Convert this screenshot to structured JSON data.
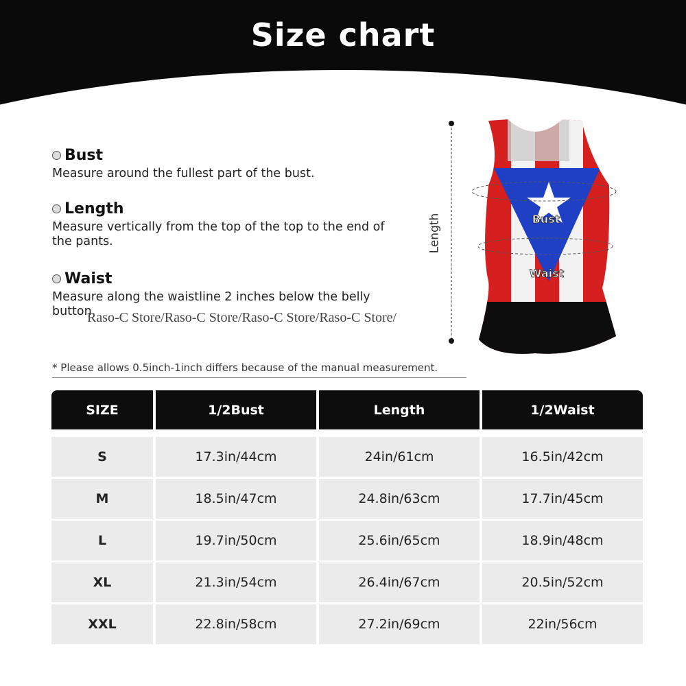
{
  "header": {
    "title": "Size chart"
  },
  "sections": [
    {
      "title": "Bust",
      "desc": "Measure around the fullest part of the bust."
    },
    {
      "title": "Length",
      "desc": "Measure vertically from the top of the top to the end of the pants."
    },
    {
      "title": "Waist",
      "desc": "Measure along the waistline 2 inches below the belly button."
    }
  ],
  "watermark": "Raso-C Store/Raso-C Store/Raso-C Store/Raso-C Store/",
  "figure": {
    "length_label": "Length",
    "bust_label": "Bust",
    "waist_label": "Waist"
  },
  "note": "* Please allows 0.5inch-1inch differs because of the  manual measurement.",
  "table": {
    "headers": [
      "SIZE",
      "1/2Bust",
      "Length",
      "1/2Waist"
    ],
    "rows": [
      [
        "S",
        "17.3in/44cm",
        "24in/61cm",
        "16.5in/42cm"
      ],
      [
        "M",
        "18.5in/47cm",
        "24.8in/63cm",
        "17.7in/45cm"
      ],
      [
        "L",
        "19.7in/50cm",
        "25.6in/65cm",
        "18.9in/48cm"
      ],
      [
        "XL",
        "21.3in/54cm",
        "26.4in/67cm",
        "20.5in/52cm"
      ],
      [
        "XXL",
        "22.8in/58cm",
        "27.2in/69cm",
        "22in/56cm"
      ]
    ]
  },
  "colors": {
    "header_bg": "#0a0a0a",
    "row_bg": "#ebebeb",
    "flag_red": "#d61f1f",
    "flag_blue": "#1f3fc4"
  }
}
